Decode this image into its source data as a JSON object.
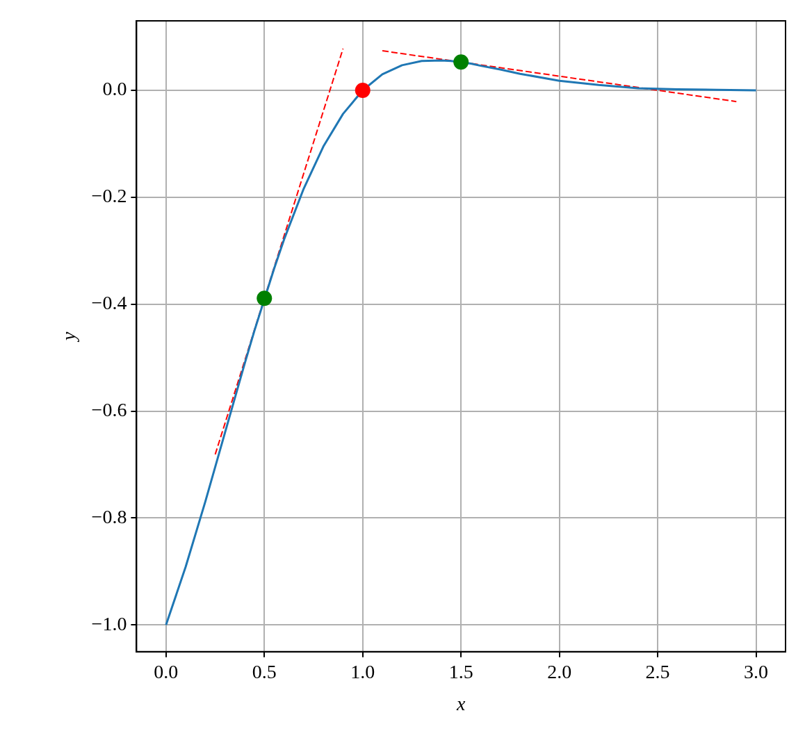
{
  "chart_data": {
    "type": "line",
    "xlabel": "x",
    "ylabel": "y",
    "xlim": [
      -0.15,
      3.15
    ],
    "ylim": [
      -1.05,
      0.13
    ],
    "xticks": [
      {
        "value": 0,
        "label": "0.0"
      },
      {
        "value": 0.5,
        "label": "0.5"
      },
      {
        "value": 1,
        "label": "1.0"
      },
      {
        "value": 1.5,
        "label": "1.5"
      },
      {
        "value": 2,
        "label": "2.0"
      },
      {
        "value": 2.5,
        "label": "2.5"
      },
      {
        "value": 3,
        "label": "3.0"
      }
    ],
    "yticks": [
      {
        "value": -1,
        "label": "−1.0"
      },
      {
        "value": -0.8,
        "label": "−0.8"
      },
      {
        "value": -0.6,
        "label": "−0.6"
      },
      {
        "value": -0.4,
        "label": "−0.4"
      },
      {
        "value": -0.2,
        "label": "−0.2"
      },
      {
        "value": 0,
        "label": "0.0"
      }
    ],
    "grid": true,
    "legend": false,
    "series": [
      {
        "type": "line",
        "color": "#1f77b4",
        "line_style": "solid",
        "marker": "none",
        "x": [
          0,
          0.1,
          0.2,
          0.3,
          0.4,
          0.45,
          0.55,
          0.6,
          0.7,
          0.8,
          0.9,
          1.0,
          1.1,
          1.2,
          1.3,
          1.4,
          1.45,
          1.55,
          1.6,
          1.7,
          1.8,
          2.0,
          2.2,
          2.4,
          2.6,
          2.8,
          3.0
        ],
        "values": [
          -1,
          -0.891,
          -0.769,
          -0.64,
          -0.511,
          -0.449,
          -0.333,
          -0.279,
          -0.184,
          -0.105,
          -0.044,
          0,
          0.03,
          0.047,
          0.055,
          0.056,
          0.055,
          0.05,
          0.046,
          0.039,
          0.031,
          0.018,
          0.01,
          0.004,
          0.002,
          0.001,
          0
        ]
      },
      {
        "type": "line",
        "color": "#ff0000",
        "line_style": "dashed",
        "marker": "none",
        "x": [
          0.25,
          0.9
        ],
        "values": [
          -0.681,
          0.078
        ]
      },
      {
        "type": "line",
        "color": "#ff0000",
        "line_style": "dashed",
        "marker": "none",
        "x": [
          1.1,
          2.9
        ],
        "values": [
          0.074,
          -0.021
        ]
      },
      {
        "type": "scatter",
        "color": "#008000",
        "marker": "circle",
        "x": [
          0.5,
          1.5
        ],
        "values": [
          -0.389,
          0.053
        ]
      },
      {
        "type": "scatter",
        "color": "#ff0000",
        "marker": "circle",
        "x": [
          1.0
        ],
        "values": [
          0
        ]
      }
    ]
  }
}
